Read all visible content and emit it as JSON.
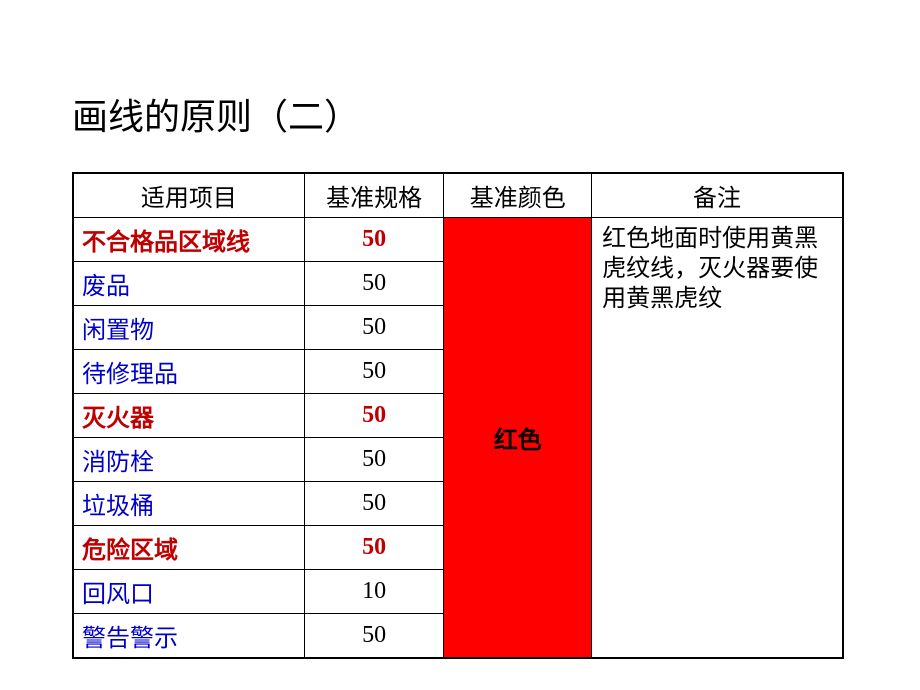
{
  "title": "画线的原则（二）",
  "table": {
    "headers": [
      "适用项目",
      "基准规格",
      "基准颜色",
      "备注"
    ],
    "colorLabel": "红色",
    "colorBg": "#ff0000",
    "note": "红色地面时使用黄黑虎纹线，灭火器要使用黄黑虎纹",
    "rows": [
      {
        "item": "不合格品区域线",
        "spec": "50",
        "itemColor": "red",
        "specColor": "red"
      },
      {
        "item": "废品",
        "spec": "50",
        "itemColor": "blue",
        "specColor": "black"
      },
      {
        "item": "闲置物",
        "spec": "50",
        "itemColor": "blue",
        "specColor": "black"
      },
      {
        "item": "待修理品",
        "spec": "50",
        "itemColor": "blue",
        "specColor": "black"
      },
      {
        "item": "灭火器",
        "spec": "50",
        "itemColor": "red",
        "specColor": "red"
      },
      {
        "item": "消防栓",
        "spec": "50",
        "itemColor": "blue",
        "specColor": "black"
      },
      {
        "item": "垃圾桶",
        "spec": "50",
        "itemColor": "blue",
        "specColor": "black"
      },
      {
        "item": "危险区域",
        "spec": "50",
        "itemColor": "red",
        "specColor": "red"
      },
      {
        "item": "回风口",
        "spec": "10",
        "itemColor": "blue",
        "specColor": "black"
      },
      {
        "item": "警告警示",
        "spec": "50",
        "itemColor": "blue",
        "specColor": "black"
      }
    ]
  }
}
